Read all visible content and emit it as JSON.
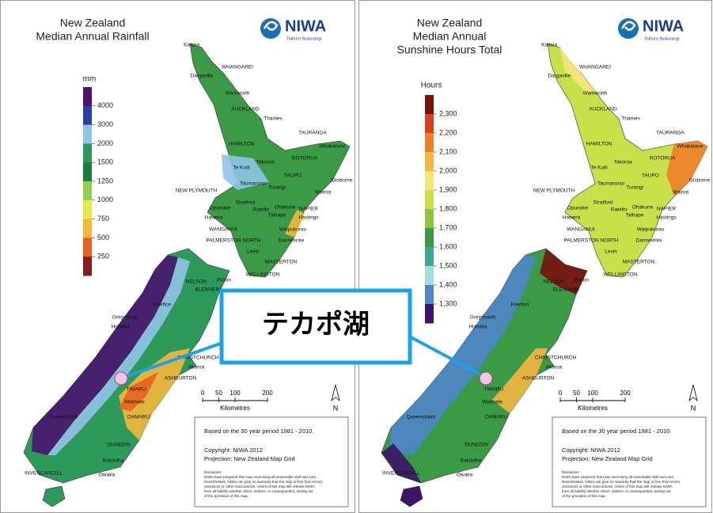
{
  "callout": {
    "label": "テカポ湖"
  },
  "maps": [
    {
      "title": [
        "New Zealand",
        "Median Annual Rainfall"
      ],
      "logo": {
        "name": "NIWA",
        "subtitle": "Taihoro Nukurangi"
      },
      "legend": {
        "unit": "mm",
        "labels": [
          "4000",
          "3000",
          "2000",
          "1500",
          "1250",
          "1000",
          "750",
          "500",
          "250"
        ],
        "colors": [
          "#4a1470",
          "#2c3e9e",
          "#8fc3e8",
          "#2e9a5a",
          "#1f7a3c",
          "#8fd14f",
          "#e8e84a",
          "#f5b83a",
          "#e8641e",
          "#8b1a1a"
        ]
      },
      "scale": {
        "ticks": [
          "0",
          "50",
          "100",
          "200"
        ],
        "unit": "Kilometres"
      },
      "north": "N",
      "info": [
        "Based on the 30 year period 1981 - 2010.",
        "Copyright: NIWA 2012",
        "Projection: New Zealand Map Grid"
      ],
      "disclaimer": [
        "Disclaimer:",
        "NIWA have prepared this map exercising all reasonable skill and care.",
        "Nevertheless, NIWA can give no warranty that the map is free from errors,",
        "omissions or other inaccuracies. Users of this map will release NIWA",
        "from all liability whether direct, indirect, or consequential, arising out",
        "of the provision of this map."
      ],
      "places": [
        "Kaitaia",
        "WHANGAREI",
        "Dargaville",
        "Warkworth",
        "AUCKLAND",
        "Thames",
        "TAURANGA",
        "Whakatane",
        "HAMILTON",
        "Tokoroa",
        "ROTORUA",
        "Te Kuiti",
        "TAUPO",
        "Taumarunui",
        "Turangi",
        "Gisborne",
        "NEW PLYMOUTH",
        "Wairoa",
        "Stratford",
        "Opunake",
        "Hawera",
        "Raetihi",
        "Ohakune",
        "Taihape",
        "NAPIER",
        "Hastings",
        "WANGANUI",
        "Waipukurau",
        "PALMERSTON NORTH",
        "Dannevirke",
        "Levin",
        "MASTERTON",
        "WELLINGTON",
        "NELSON",
        "Picton",
        "BLENHEIM",
        "Greymouth",
        "Reefton",
        "Hokitika",
        "CHRISTCHURCH",
        "Akaroa",
        "ASHBURTON",
        "TIMARU",
        "Waimate",
        "Queenstown",
        "OAMARU",
        "DUNEDIN",
        "Balclutha",
        "INVERCARGILL",
        "Owaka"
      ]
    },
    {
      "title": [
        "New Zealand",
        "Median Annual",
        "Sunshine Hours Total"
      ],
      "logo": {
        "name": "NIWA",
        "subtitle": "Taihoro Nukurangi"
      },
      "legend": {
        "unit": "Hours",
        "labels": [
          "2,300",
          "2,200",
          "2,100",
          "2,000",
          "1,900",
          "1,800",
          "1,700",
          "1,600",
          "1,500",
          "1,400",
          "1,300"
        ],
        "colors": [
          "#7a1010",
          "#d9401e",
          "#f07f2a",
          "#f5b640",
          "#f5e67a",
          "#c8e04a",
          "#8cc63f",
          "#3a9a45",
          "#40a88a",
          "#a8dde0",
          "#4f86c8",
          "#3d1466"
        ]
      },
      "scale": {
        "ticks": [
          "0",
          "50",
          "100",
          "200"
        ],
        "unit": "Kilometres"
      },
      "north": "N",
      "info": [
        "Based on the 30 year period 1981 - 2010.",
        "Copyright: NIWA 2012",
        "Projection: New Zealand Map Grid"
      ],
      "disclaimer": [
        "Disclaimer:",
        "NIWA have prepared this map exercising all reasonable skill and care.",
        "Nevertheless, NIWA can give no warranty that the map is free from errors,",
        "omissions or other inaccuracies. Users of this map will release NIWA",
        "from all liability whether direct, indirect, or consequential, arising out",
        "of the provision of this map."
      ],
      "places": [
        "Kaitaia",
        "WHANGAREI",
        "Dargaville",
        "Warkworth",
        "AUCKLAND",
        "Thames",
        "TAURANGA",
        "Whakatane",
        "HAMILTON",
        "Tokoroa",
        "ROTORUA",
        "Te Kuiti",
        "TAUPO",
        "Taumarunui",
        "Turangi",
        "Gisborne",
        "NEW PLYMOUTH",
        "Wairoa",
        "Stratford",
        "Opunake",
        "Hawera",
        "Raetihi",
        "Ohakune",
        "Taihape",
        "NAPIER",
        "Hastings",
        "WANGANUI",
        "Waipukurau",
        "PALMERSTON NORTH",
        "Dannevirke",
        "Levin",
        "MASTERTON",
        "WELLINGTON",
        "NELSON",
        "Picton",
        "BLENHEIM",
        "Greymouth",
        "Reefton",
        "Hokitika",
        "CHRISTCHURCH",
        "Akaroa",
        "ASHBURTON",
        "TIMARU",
        "Waimate",
        "Queenstown",
        "OAMARU",
        "DUNEDIN",
        "Balclutha",
        "INVERCARGILL",
        "Owaka"
      ]
    }
  ]
}
